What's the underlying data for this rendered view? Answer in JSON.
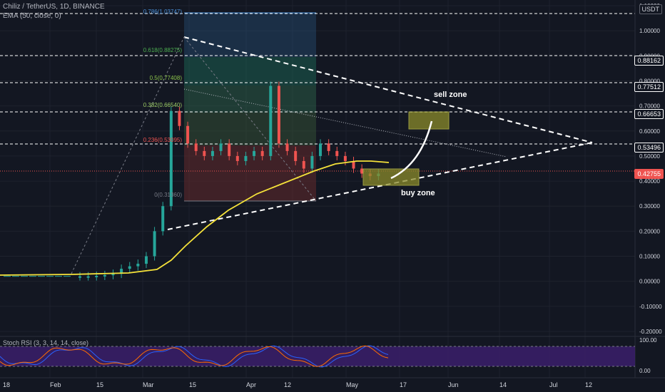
{
  "header": {
    "symbol": "Chiliz / TetherUS, 1D, BINANCE",
    "ema": "EMA (50, close, 0)",
    "currency": "USDT"
  },
  "price_scale": [
    "1.10000",
    "1.00000",
    "0.90000",
    "0.80000",
    "0.70000",
    "0.60000",
    "0.50000",
    "0.40000",
    "0.30000",
    "0.20000",
    "0.10000",
    "0.00000",
    "-0.10000",
    "-0.20000"
  ],
  "price_badges": [
    {
      "text": "0.88162",
      "color": "#ffffff",
      "bg": "#131722",
      "border": "#ffffff"
    },
    {
      "text": "0.77512",
      "color": "#ffffff",
      "bg": "#131722",
      "border": "#ffffff"
    },
    {
      "text": "0.66653",
      "color": "#ffffff",
      "bg": "#131722",
      "border": "#ffffff"
    },
    {
      "text": "0.53496",
      "color": "#ffffff",
      "bg": "#131722",
      "border": "#ffffff"
    },
    {
      "text": "0.42755",
      "color": "#ffffff",
      "bg": "#ef5350",
      "border": "#ef5350"
    }
  ],
  "time_axis": [
    "18",
    "Feb",
    "15",
    "Mar",
    "15",
    "Apr",
    "12",
    "May",
    "17",
    "Jun",
    "14",
    "Jul",
    "12"
  ],
  "fib_levels": [
    {
      "label": "0.786(1.03747)",
      "price": 1.0375,
      "color": "#4a90d9"
    },
    {
      "label": "0.618(0.88275)",
      "price": 0.8828,
      "color": "#4caf50"
    },
    {
      "label": "0.5(0.77408)",
      "price": 0.7741,
      "color": "#8bc34a"
    },
    {
      "label": "0.382(0.66540)",
      "price": 0.6654,
      "color": "#9ccc65"
    },
    {
      "label": "0.236(0.53095)",
      "price": 0.531,
      "color": "#ef5350"
    },
    {
      "label": "0(0.31360)",
      "price": 0.3136,
      "color": "#787b86"
    }
  ],
  "annotations": {
    "sell_zone": "sell zone",
    "buy_zone": "buy zone"
  },
  "stoch": {
    "label": "Stoch RSI (3, 3, 14, 14, close)",
    "scale": [
      "100.00",
      "0.00"
    ]
  },
  "colors": {
    "up": "#26a69a",
    "down": "#ef5350",
    "ema": "#f5e23a",
    "zone": "#8a8a2a"
  },
  "chart_data": {
    "type": "candlestick",
    "symbol": "Chiliz / TetherUS",
    "interval": "1D",
    "exchange": "BINANCE",
    "ylim": [
      -0.2,
      1.1
    ],
    "last_price": 0.42755,
    "approx_close_series": [
      0.02,
      0.02,
      0.022,
      0.025,
      0.03,
      0.05,
      0.06,
      0.07,
      0.1,
      0.2,
      0.3,
      0.68,
      0.62,
      0.55,
      0.52,
      0.5,
      0.52,
      0.55,
      0.5,
      0.48,
      0.5,
      0.52,
      0.5,
      0.78,
      0.55,
      0.52,
      0.48,
      0.45,
      0.5,
      0.55,
      0.52,
      0.5,
      0.48,
      0.45,
      0.43,
      0.42,
      0.43
    ]
  }
}
